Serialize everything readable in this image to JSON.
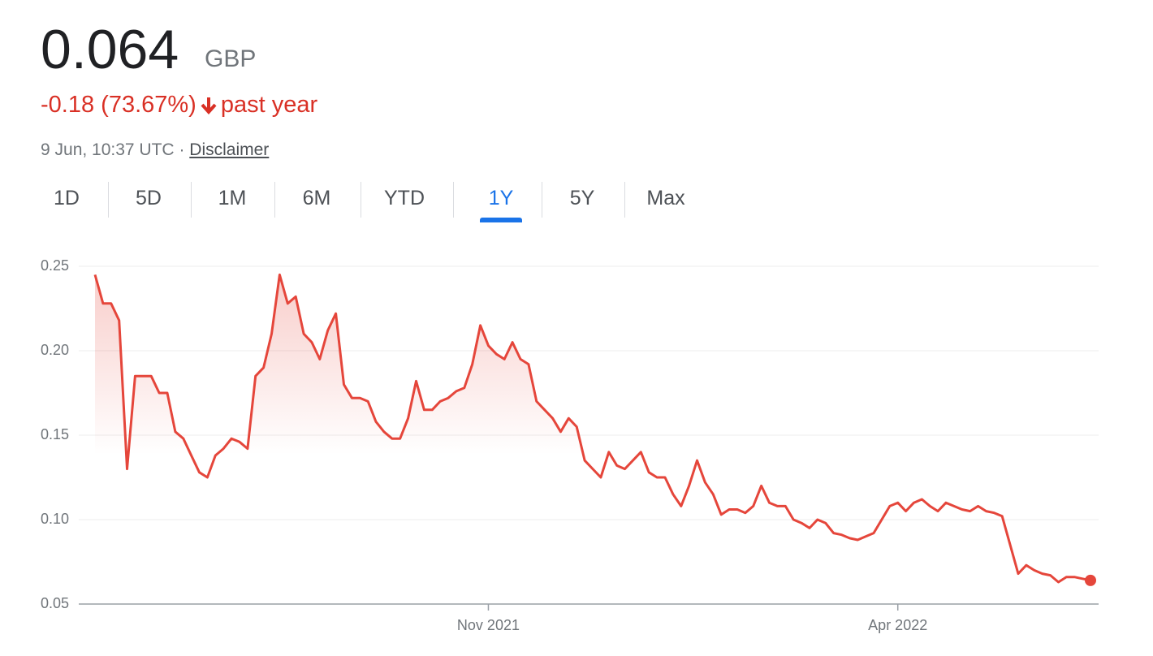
{
  "header": {
    "price": "0.064",
    "currency": "GBP",
    "change": "-0.18 (73.67%)",
    "period": "past year",
    "timestamp": "9 Jun, 10:37 UTC",
    "separator": "·",
    "disclaimer": "Disclaimer"
  },
  "tabs": [
    {
      "label": "1D"
    },
    {
      "label": "5D"
    },
    {
      "label": "1M"
    },
    {
      "label": "6M"
    },
    {
      "label": "YTD"
    },
    {
      "label": "1Y",
      "selected": true
    },
    {
      "label": "5Y"
    },
    {
      "label": "Max"
    }
  ],
  "chart_data": {
    "type": "line",
    "color": "#e5463b",
    "grid": true,
    "end_marker": true,
    "ylim": [
      0.05,
      0.25
    ],
    "yticks": [
      0.05,
      {
        "value": 0.1,
        "label": "0.10"
      },
      0.15,
      {
        "value": 0.2,
        "label": "0.20"
      },
      0.25
    ],
    "categories": [
      null,
      null,
      null,
      null,
      null,
      null,
      null,
      null,
      null,
      null,
      null,
      null,
      null,
      null,
      null,
      null,
      null,
      null,
      null,
      null,
      null,
      null,
      null,
      null,
      null,
      null,
      null,
      null,
      null,
      null,
      null,
      null,
      null,
      null,
      null,
      null,
      null,
      null,
      null,
      null,
      null,
      null,
      null,
      null,
      null,
      null,
      null,
      null,
      null,
      "Nov 2021",
      null,
      null,
      null,
      null,
      null,
      null,
      null,
      null,
      null,
      null,
      null,
      null,
      null,
      null,
      null,
      null,
      null,
      null,
      null,
      null,
      null,
      null,
      null,
      null,
      null,
      null,
      null,
      null,
      null,
      null,
      null,
      null,
      null,
      null,
      null,
      null,
      null,
      null,
      null,
      null,
      null,
      null,
      null,
      null,
      null,
      null,
      null,
      null,
      null,
      null,
      "Apr 2022",
      null,
      null,
      null,
      null,
      null,
      null,
      null,
      null,
      null,
      null,
      null,
      null,
      null,
      null,
      null,
      null,
      null,
      null,
      null,
      null,
      null,
      null,
      null,
      null
    ],
    "values": [
      0.245,
      0.228,
      0.228,
      0.218,
      0.13,
      0.185,
      0.185,
      0.185,
      0.175,
      0.175,
      0.152,
      0.148,
      0.138,
      0.128,
      0.125,
      0.138,
      0.142,
      0.148,
      0.146,
      0.142,
      0.185,
      0.19,
      0.21,
      0.245,
      0.228,
      0.232,
      0.21,
      0.205,
      0.195,
      0.212,
      0.222,
      0.18,
      0.172,
      0.172,
      0.17,
      0.158,
      0.152,
      0.148,
      0.148,
      0.16,
      0.182,
      0.165,
      0.165,
      0.17,
      0.172,
      0.176,
      0.178,
      0.192,
      0.215,
      0.203,
      0.198,
      0.195,
      0.205,
      0.195,
      0.192,
      0.17,
      0.165,
      0.16,
      0.152,
      0.16,
      0.155,
      0.135,
      0.13,
      0.125,
      0.14,
      0.132,
      0.13,
      0.135,
      0.14,
      0.128,
      0.125,
      0.125,
      0.115,
      0.108,
      0.12,
      0.135,
      0.122,
      0.115,
      0.103,
      0.106,
      0.106,
      0.104,
      0.108,
      0.12,
      0.11,
      0.108,
      0.108,
      0.1,
      0.098,
      0.095,
      0.1,
      0.098,
      0.092,
      0.091,
      0.089,
      0.088,
      0.09,
      0.092,
      0.1,
      0.108,
      0.11,
      0.105,
      0.11,
      0.112,
      0.108,
      0.105,
      0.11,
      0.108,
      0.106,
      0.105,
      0.108,
      0.105,
      0.104,
      0.102,
      0.085,
      0.068,
      0.073,
      0.07,
      0.068,
      0.067,
      0.063,
      0.066,
      0.066,
      0.065,
      0.064
    ]
  }
}
